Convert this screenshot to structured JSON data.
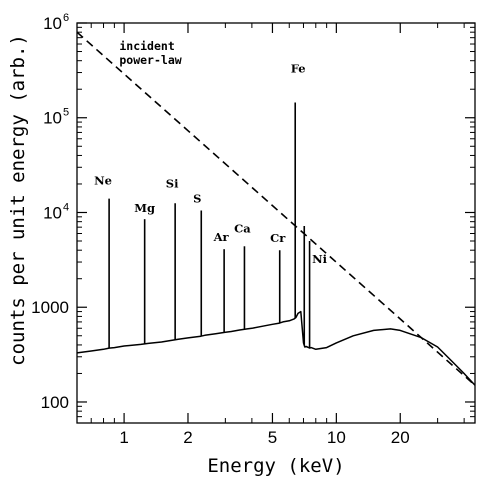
{
  "chart_data": {
    "type": "line",
    "xlabel": "Energy (keV)",
    "ylabel": "counts per unit energy (arb.)",
    "x_scale": "log",
    "y_scale": "log",
    "xlim": [
      0.6,
      45
    ],
    "ylim": [
      60,
      1000000
    ],
    "x_ticks": [
      {
        "value": 1,
        "label": "1"
      },
      {
        "value": 2,
        "label": "2"
      },
      {
        "value": 5,
        "label": "5"
      },
      {
        "value": 10,
        "label": "10"
      },
      {
        "value": 20,
        "label": "20"
      }
    ],
    "y_ticks": [
      {
        "value": 100,
        "label": "100",
        "exp": ""
      },
      {
        "value": 1000,
        "label": "1000",
        "exp": ""
      },
      {
        "value": 10000,
        "label": "10",
        "exp": "4"
      },
      {
        "value": 100000,
        "label": "10",
        "exp": "5"
      },
      {
        "value": 1000000,
        "label": "10",
        "exp": "6"
      }
    ],
    "annotation": {
      "lines": [
        "incident",
        "power-law"
      ],
      "x": 0.95,
      "y": 520000
    },
    "series": [
      {
        "style": "dashed",
        "x": [
          0.6,
          45
        ],
        "y": [
          800000,
          150
        ]
      },
      {
        "style": "solid",
        "x": [
          0.6,
          0.7,
          0.8,
          0.85,
          0.9,
          1.0,
          1.2,
          1.3,
          1.5,
          1.7,
          1.8,
          2.0,
          2.3,
          2.4,
          2.7,
          3.0,
          3.2,
          3.5,
          3.8,
          4.0,
          4.5,
          5.0,
          5.4,
          5.6,
          6.0,
          6.3,
          6.45,
          6.6,
          6.8,
          7.0,
          7.1,
          7.2,
          7.5,
          7.6,
          8.0,
          9.0,
          10,
          12,
          15,
          18,
          20,
          25,
          30,
          35,
          40,
          45
        ],
        "y": [
          330,
          345,
          360,
          370,
          375,
          390,
          405,
          415,
          430,
          450,
          460,
          475,
          495,
          505,
          525,
          545,
          555,
          575,
          590,
          600,
          630,
          660,
          680,
          700,
          720,
          750,
          780,
          860,
          900,
          420,
          380,
          385,
          370,
          375,
          360,
          375,
          420,
          500,
          570,
          590,
          570,
          480,
          380,
          270,
          200,
          150
        ]
      }
    ],
    "lines": [
      {
        "label": "Ne",
        "energy": 0.85,
        "peak": 14000
      },
      {
        "label": "Mg",
        "energy": 1.25,
        "peak": 8500
      },
      {
        "label": "Si",
        "energy": 1.74,
        "peak": 12500
      },
      {
        "label": "S",
        "energy": 2.31,
        "peak": 10500
      },
      {
        "label": "Ar",
        "energy": 2.96,
        "peak": 4100
      },
      {
        "label": "Ca",
        "energy": 3.69,
        "peak": 4400
      },
      {
        "label": "Cr",
        "energy": 5.41,
        "peak": 4000
      },
      {
        "label": "Fe",
        "energy": 6.4,
        "peak": 145000
      },
      {
        "label": "Ni",
        "energy": 7.48,
        "peak": 5000
      }
    ],
    "iron_k_beta": {
      "energy": 7.06,
      "peak": 7200
    },
    "grid": false
  }
}
